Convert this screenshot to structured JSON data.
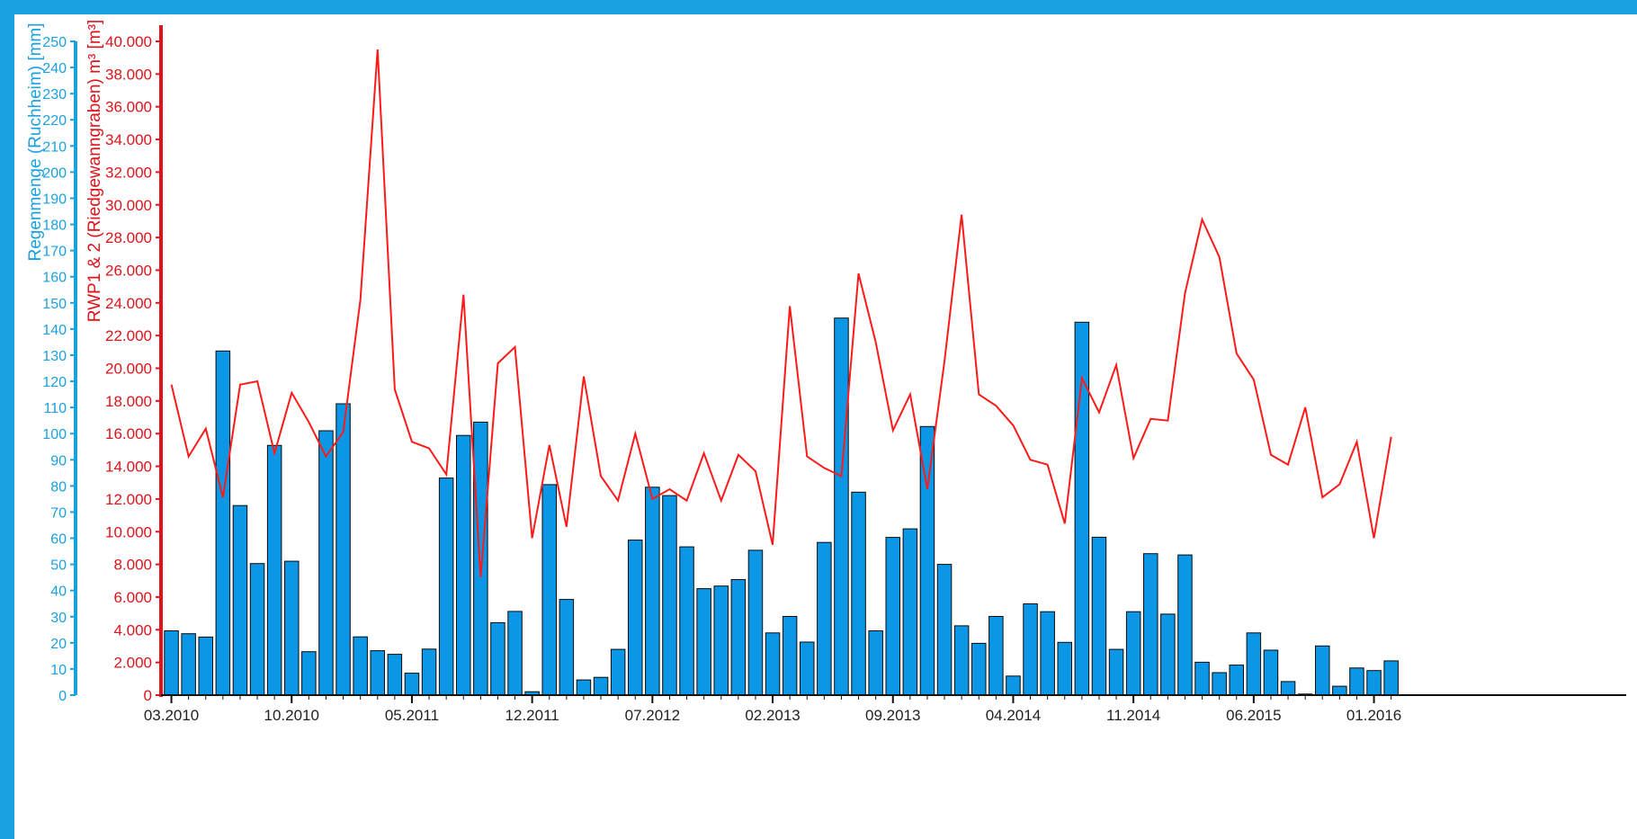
{
  "colors": {
    "frame": "#1aa1e1",
    "bar_fill": "#0b97e6",
    "bar_stroke": "#0a0a0a",
    "line": "#ff1a1a",
    "left_axis": "#1aa1e1",
    "right_axis": "#e0131a"
  },
  "chart_data": {
    "type": "bar",
    "ylabel": "Regenmenge (Ruchheim) [mm]",
    "y2label": "RWP1 & 2 (Riedgewanngraben) m³ [m³]",
    "ylim": [
      0,
      250
    ],
    "y2lim": [
      0,
      40000
    ],
    "y_ticks": [
      "0",
      "10",
      "20",
      "30",
      "40",
      "50",
      "60",
      "70",
      "80",
      "90",
      "100",
      "110",
      "120",
      "130",
      "140",
      "150",
      "160",
      "170",
      "180",
      "190",
      "200",
      "210",
      "220",
      "230",
      "240",
      "250"
    ],
    "y2_ticks": [
      "0",
      "2.000",
      "4.000",
      "6.000",
      "8.000",
      "10.000",
      "12.000",
      "14.000",
      "16.000",
      "18.000",
      "20.000",
      "22.000",
      "24.000",
      "26.000",
      "28.000",
      "30.000",
      "32.000",
      "34.000",
      "36.000",
      "38.000",
      "40.000"
    ],
    "x_ticks": [
      {
        "label": "03.2010",
        "index": 0
      },
      {
        "label": "10.2010",
        "index": 7
      },
      {
        "label": "05.2011",
        "index": 14
      },
      {
        "label": "12.2011",
        "index": 21
      },
      {
        "label": "07.2012",
        "index": 28
      },
      {
        "label": "02.2013",
        "index": 35
      },
      {
        "label": "09.2013",
        "index": 42
      },
      {
        "label": "04.2014",
        "index": 49
      },
      {
        "label": "11.2014",
        "index": 56
      },
      {
        "label": "06.2015",
        "index": 63
      },
      {
        "label": "01.2016",
        "index": 70
      }
    ],
    "series": [
      {
        "type": "bar",
        "axis": "left",
        "values": [
          24.6,
          23.5,
          22.2,
          131.6,
          72.5,
          50.3,
          95.5,
          51.2,
          16.6,
          101.1,
          111.4,
          22.3,
          17.0,
          15.6,
          8.4,
          17.6,
          83.0,
          99.3,
          104.4,
          27.7,
          32.0,
          1.3,
          80.5,
          36.6,
          5.8,
          6.8,
          17.5,
          59.3,
          79.5,
          76.3,
          56.7,
          40.7,
          41.7,
          44.2,
          55.4,
          23.8,
          30.1,
          20.3,
          58.4,
          144.2,
          77.6,
          24.6,
          60.3,
          63.6,
          102.7,
          50.0,
          26.5,
          19.8,
          30.1,
          7.3,
          34.9,
          31.9,
          20.2,
          142.6,
          60.4,
          17.5,
          31.9,
          54.1,
          31.0,
          53.6,
          12.6,
          8.6,
          11.5,
          23.8,
          17.2,
          5.2,
          0.4,
          18.8,
          3.4,
          10.4,
          9.4,
          13.1
        ]
      },
      {
        "type": "line",
        "axis": "right",
        "values": [
          19000,
          14600,
          16300,
          12100,
          19000,
          19200,
          14800,
          18500,
          16700,
          14600,
          16100,
          24200,
          39500,
          18700,
          15500,
          15100,
          13500,
          24500,
          7200,
          20300,
          21300,
          9600,
          15300,
          10300,
          19500,
          13400,
          11900,
          16000,
          12000,
          12600,
          11900,
          14800,
          11900,
          14700,
          13700,
          9200,
          23800,
          14600,
          13900,
          13400,
          25800,
          21600,
          16200,
          18400,
          12600,
          20400,
          29400,
          18400,
          17700,
          16500,
          14400,
          14100,
          10500,
          19400,
          17300,
          20200,
          14500,
          16900,
          16800,
          24600,
          29100,
          26800,
          20900,
          19300,
          14700,
          14100,
          17600,
          12100,
          12900,
          15500,
          9600,
          15800
        ]
      }
    ]
  }
}
